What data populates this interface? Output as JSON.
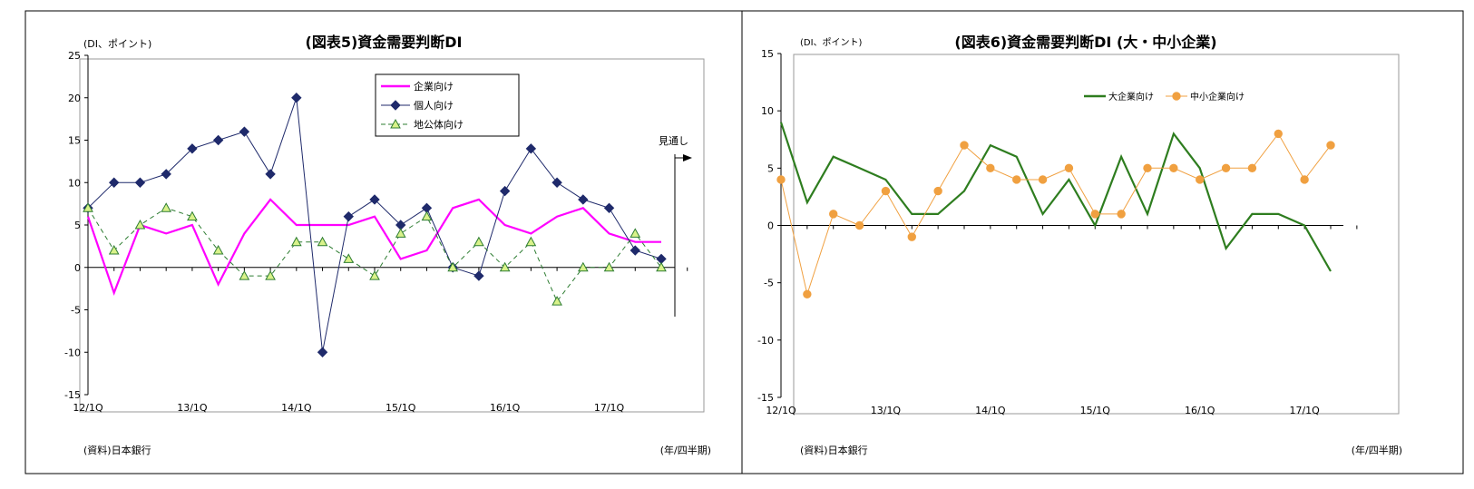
{
  "chart_data": [
    {
      "type": "line",
      "title": "(図表5)資金需要判断DI",
      "ylabel": "(DI、ポイント)",
      "xlabel": "(年/四半期)",
      "source": "(資料)日本銀行",
      "annotation": "見通し",
      "ylim": [
        -15,
        25
      ],
      "yticks": [
        25,
        20,
        15,
        10,
        5,
        0,
        -5,
        -10,
        -15
      ],
      "x_tick_labels": [
        "12/1Q",
        "13/1Q",
        "14/1Q",
        "15/1Q",
        "16/1Q",
        "17/1Q"
      ],
      "n_points": 23,
      "legend_position": "top-center",
      "grid": false,
      "series": [
        {
          "name": "企業向け",
          "color": "#ff00ff",
          "marker": "none",
          "values": [
            6,
            -3,
            5,
            4,
            5,
            -2,
            4,
            8,
            5,
            5,
            5,
            6,
            1,
            2,
            7,
            8,
            5,
            4,
            6,
            7,
            4,
            3,
            3
          ]
        },
        {
          "name": "個人向け",
          "color": "#1f2a6b",
          "marker": "diamond",
          "values": [
            7,
            10,
            10,
            11,
            14,
            15,
            16,
            11,
            20,
            -10,
            6,
            8,
            5,
            7,
            0,
            -1,
            9,
            14,
            10,
            8,
            7,
            2,
            1
          ]
        },
        {
          "name": "地公体向け",
          "color": "#2e7d32",
          "marker": "triangle",
          "dashed": true,
          "values": [
            7,
            2,
            5,
            7,
            6,
            2,
            -1,
            -1,
            3,
            3,
            1,
            -1,
            4,
            6,
            0,
            3,
            0,
            3,
            -4,
            0,
            0,
            4,
            0
          ]
        }
      ]
    },
    {
      "type": "line",
      "title": "(図表6)資金需要判断DI (大・中小企業)",
      "ylabel": "(DI、ポイント)",
      "xlabel": "(年/四半期)",
      "source": "(資料)日本銀行",
      "ylim": [
        -15,
        15
      ],
      "yticks": [
        15,
        10,
        5,
        0,
        -5,
        -10,
        -15
      ],
      "x_tick_labels": [
        "12/1Q",
        "13/1Q",
        "14/1Q",
        "15/1Q",
        "16/1Q",
        "17/1Q"
      ],
      "n_points": 22,
      "legend_position": "top-center",
      "grid": false,
      "series": [
        {
          "name": "大企業向け",
          "color": "#2e7d1f",
          "marker": "none",
          "values": [
            9,
            2,
            6,
            5,
            4,
            1,
            1,
            3,
            7,
            6,
            1,
            4,
            0,
            6,
            1,
            8,
            5,
            -2,
            1,
            1,
            0,
            -4
          ]
        },
        {
          "name": "中小企業向け",
          "color": "#f0a040",
          "marker": "circle",
          "values": [
            4,
            -6,
            1,
            0,
            3,
            -1,
            3,
            7,
            5,
            4,
            4,
            5,
            1,
            1,
            5,
            5,
            4,
            5,
            5,
            8,
            4,
            7
          ]
        }
      ]
    }
  ]
}
